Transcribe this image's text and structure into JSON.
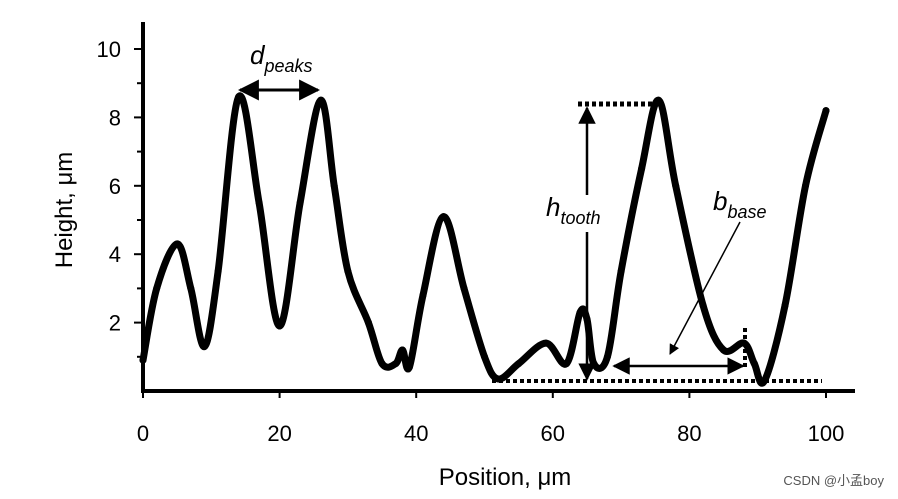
{
  "chart_data": {
    "type": "line",
    "xlabel": "Position, μm",
    "ylabel": "Height, μm",
    "xlim": [
      0,
      100
    ],
    "ylim": [
      0,
      10.5
    ],
    "x_ticks": [
      0,
      20,
      40,
      60,
      80,
      100
    ],
    "y_ticks": [
      2,
      4,
      6,
      8,
      10
    ],
    "grid": false,
    "series": [
      {
        "x": [
          0,
          2,
          5,
          7,
          9,
          11,
          14,
          17,
          20,
          23,
          26,
          28,
          30,
          33,
          35,
          37,
          38,
          39,
          41,
          44,
          47,
          50,
          52,
          55,
          59,
          62,
          64,
          65,
          66,
          68,
          70,
          73,
          75.5,
          78,
          82,
          85,
          88,
          89.5,
          91,
          94,
          97,
          100
        ],
        "y": [
          0.9,
          3.0,
          4.3,
          3.0,
          1.3,
          3.5,
          8.6,
          5.5,
          1.9,
          5.5,
          8.5,
          6.0,
          3.5,
          2.0,
          0.8,
          0.8,
          1.2,
          0.7,
          2.8,
          5.1,
          3.0,
          1.0,
          0.35,
          0.8,
          1.4,
          0.8,
          2.3,
          2.1,
          0.8,
          1.0,
          3.5,
          6.5,
          8.5,
          6.0,
          2.5,
          1.2,
          1.4,
          0.8,
          0.3,
          2.5,
          6.0,
          8.2
        ]
      }
    ],
    "annotations": [
      {
        "main": "d",
        "sub": "peaks"
      },
      {
        "main": "h",
        "sub": "tooth"
      },
      {
        "main": "b",
        "sub": "base"
      }
    ]
  },
  "watermark": "CSDN @小孟boy"
}
